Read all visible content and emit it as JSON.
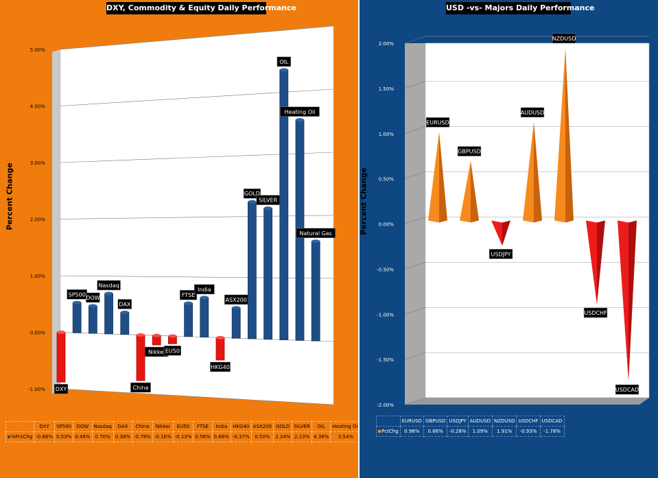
{
  "left": {
    "title": "DXY, Commodity  & Equity Daily Performance",
    "ylabel": "Percent Change",
    "row_label": "%PctChg",
    "colors": {
      "positive": "#1f4e87",
      "negative": "#e8150f",
      "background": "#f07c0e",
      "wall": "#ffffff"
    }
  },
  "right": {
    "title": "USD -vs- Majors Daily Performance",
    "ylabel": "Percent Change",
    "row_label": "PctChg",
    "colors": {
      "positive": "#f68a1e",
      "negative": "#ed1c1c",
      "background": "#0e4782",
      "wall": "#ffffff"
    }
  },
  "chart_data": [
    {
      "type": "bar",
      "title": "DXY, Commodity  & Equity Daily Performance",
      "xlabel": "",
      "ylabel": "Percent Change",
      "ylim": [
        -1.0,
        5.0
      ],
      "yticks": [
        "-1.00%",
        "0.00%",
        "1.00%",
        "2.00%",
        "3.00%",
        "4.00%",
        "5.00%"
      ],
      "grid": true,
      "categories": [
        "DXY",
        "SP500",
        "DOW",
        "Nasdaq",
        "DAX",
        "China",
        "Nikkei",
        "EU50",
        "FTSE",
        "India",
        "HKG40",
        "ASX200",
        "GOLD",
        "SILVER",
        "OIL",
        "Heating Oil",
        "Natural Gas"
      ],
      "bar_labels": [
        "DXY",
        "SP500",
        "DOW",
        "Nasdaq",
        "DAX",
        "China",
        "Nikkei",
        "EU50",
        "FTSE",
        "India",
        "HKG40",
        "ASX200",
        "GOLD",
        "SILVER",
        "OIL",
        "Heating Oil",
        "Natural Gas"
      ],
      "values": [
        -0.88,
        0.53,
        0.48,
        0.7,
        0.38,
        -0.78,
        -0.16,
        -0.13,
        0.56,
        0.66,
        -0.37,
        0.5,
        2.24,
        2.13,
        4.36,
        3.54,
        1.59
      ],
      "value_labels": [
        "-0.88%",
        "0.53%",
        "0.48%",
        "0.70%",
        "0.38%",
        "-0.78%",
        "-0.16%",
        "-0.13%",
        "0.56%",
        "0.66%",
        "-0.37%",
        "0.50%",
        "2.24%",
        "2.13%",
        "4.36%",
        "3.54%",
        "1.59%"
      ]
    },
    {
      "type": "bar",
      "title": "USD -vs- Majors Daily Performance",
      "xlabel": "",
      "ylabel": "Percent Change",
      "ylim": [
        -2.0,
        2.0
      ],
      "yticks": [
        "-2.00%",
        "-1.50%",
        "-1.00%",
        "-0.50%",
        "0.00%",
        "0.50%",
        "1.00%",
        "1.50%",
        "2.00%"
      ],
      "grid": true,
      "categories": [
        "EURUSD",
        "GBPUSD",
        "USDJPY",
        "AUDUSD",
        "NZDUSD",
        "USDCHF",
        "USDCAD"
      ],
      "bar_labels": [
        "EURUSD",
        "GBPUSD",
        "USDJPY",
        "AUDUSD",
        "NZDUSD",
        "USDCHF",
        "USDCAD"
      ],
      "values": [
        0.98,
        0.66,
        -0.28,
        1.09,
        1.91,
        -0.93,
        -1.78
      ],
      "value_labels": [
        "0.98%",
        "0.66%",
        "-0.28%",
        "1.09%",
        "1.91%",
        "-0.93%",
        "-1.78%"
      ]
    }
  ]
}
